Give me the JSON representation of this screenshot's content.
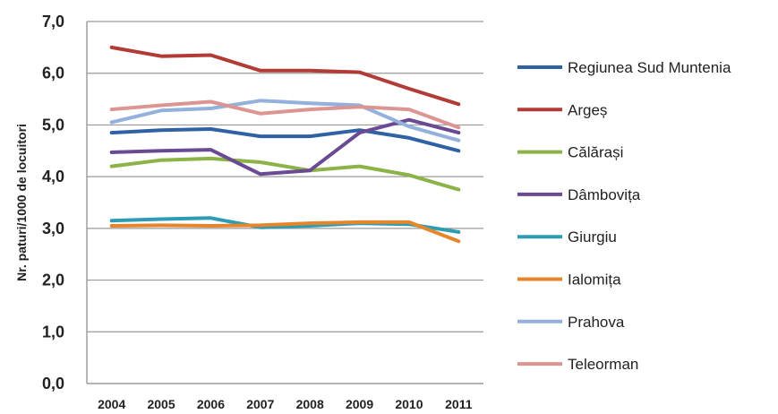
{
  "chart_data": {
    "type": "line",
    "title": "",
    "xlabel": "",
    "ylabel": "Nr. paturi/1000 de locuitori",
    "ylim": [
      0,
      7
    ],
    "yticks": [
      "0,0",
      "1,0",
      "2,0",
      "3,0",
      "4,0",
      "5,0",
      "6,0",
      "7,0"
    ],
    "grid": true,
    "legend_position": "right",
    "x": [
      "2004",
      "2005",
      "2006",
      "2007",
      "2008",
      "2009",
      "2010",
      "2011"
    ],
    "series": [
      {
        "name": "Regiunea Sud Muntenia",
        "color": "#2e62a4",
        "values": [
          4.85,
          4.9,
          4.92,
          4.78,
          4.78,
          4.9,
          4.75,
          4.5
        ]
      },
      {
        "name": "Argeș",
        "color": "#b33b35",
        "values": [
          6.5,
          6.33,
          6.35,
          6.05,
          6.05,
          6.02,
          5.7,
          5.4
        ]
      },
      {
        "name": "Călărași",
        "color": "#8cb347",
        "values": [
          4.2,
          4.32,
          4.35,
          4.28,
          4.12,
          4.2,
          4.03,
          3.75
        ]
      },
      {
        "name": "Dâmbovița",
        "color": "#6b4a94",
        "values": [
          4.47,
          4.5,
          4.52,
          4.05,
          4.12,
          4.85,
          5.1,
          4.85
        ]
      },
      {
        "name": "Giurgiu",
        "color": "#2c9db4",
        "values": [
          3.15,
          3.18,
          3.2,
          3.02,
          3.05,
          3.1,
          3.08,
          2.93
        ]
      },
      {
        "name": "Ialomița",
        "color": "#e5862c",
        "values": [
          3.05,
          3.06,
          3.05,
          3.06,
          3.1,
          3.12,
          3.12,
          2.75
        ]
      },
      {
        "name": "Prahova",
        "color": "#93b1dc",
        "values": [
          5.05,
          5.28,
          5.32,
          5.47,
          5.42,
          5.38,
          4.97,
          4.7
        ]
      },
      {
        "name": "Teleorman",
        "color": "#dc9593",
        "values": [
          5.3,
          5.38,
          5.45,
          5.22,
          5.3,
          5.35,
          5.3,
          4.95
        ]
      }
    ]
  }
}
